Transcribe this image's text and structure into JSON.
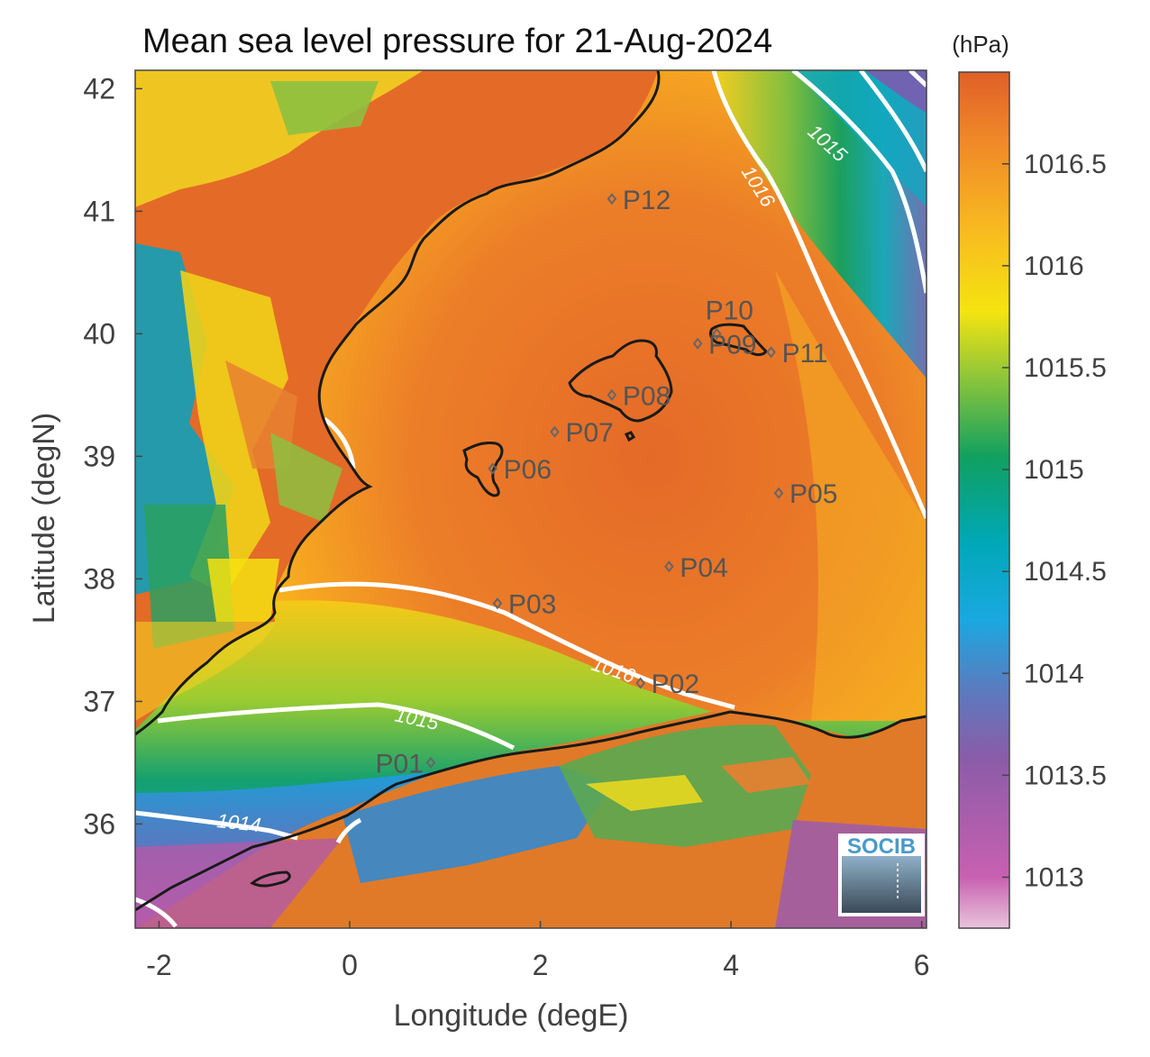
{
  "title": "Mean sea level pressure for 21-Aug-2024",
  "colorbar": {
    "unit": "(hPa)",
    "ticks": [
      "1016.5",
      "1016",
      "1015.5",
      "1015",
      "1014.5",
      "1014",
      "1013.5",
      "1013"
    ],
    "range": [
      1012.75,
      1016.95
    ],
    "colors": [
      "#e8c4dc",
      "#c860b0",
      "#8a5ca8",
      "#5a7cc0",
      "#1aa8e0",
      "#00a8b8",
      "#10a060",
      "#7cc040",
      "#f4e410",
      "#f8b820",
      "#f08828",
      "#e06028"
    ]
  },
  "map": {
    "x_axis": {
      "label": "Longitude (degE)",
      "ticks": [
        "-2",
        "0",
        "2",
        "4",
        "6"
      ],
      "range": [
        -2.25,
        6.05
      ]
    },
    "y_axis": {
      "label": "Latitude (degN)",
      "ticks": [
        "36",
        "37",
        "38",
        "39",
        "40",
        "41",
        "42"
      ],
      "range": [
        35.15,
        42.15
      ]
    },
    "points": [
      {
        "id": "P01",
        "label": "P01",
        "lon": 0.85,
        "lat": 36.5
      },
      {
        "id": "P02",
        "label": "P02",
        "lon": 3.05,
        "lat": 37.15
      },
      {
        "id": "P03",
        "label": "P03",
        "lon": 1.55,
        "lat": 37.8
      },
      {
        "id": "P04",
        "label": "P04",
        "lon": 3.35,
        "lat": 38.1
      },
      {
        "id": "P05",
        "label": "P05",
        "lon": 4.5,
        "lat": 38.7
      },
      {
        "id": "P06",
        "label": "P06",
        "lon": 1.5,
        "lat": 38.9
      },
      {
        "id": "P07",
        "label": "P07",
        "lon": 2.15,
        "lat": 39.2
      },
      {
        "id": "P08",
        "label": "P08",
        "lon": 2.75,
        "lat": 39.5
      },
      {
        "id": "P09",
        "label": "P09",
        "lon": 3.65,
        "lat": 39.92
      },
      {
        "id": "P10",
        "label": "P10",
        "lon": 3.85,
        "lat": 40.0
      },
      {
        "id": "P11",
        "label": "P11",
        "lon": 4.42,
        "lat": 39.85
      },
      {
        "id": "P12",
        "label": "P12",
        "lon": 2.75,
        "lat": 41.1
      }
    ],
    "contour_labels": [
      "1016",
      "1015",
      "1016",
      "1015",
      "1014"
    ],
    "logo_text": "SOCIB"
  }
}
